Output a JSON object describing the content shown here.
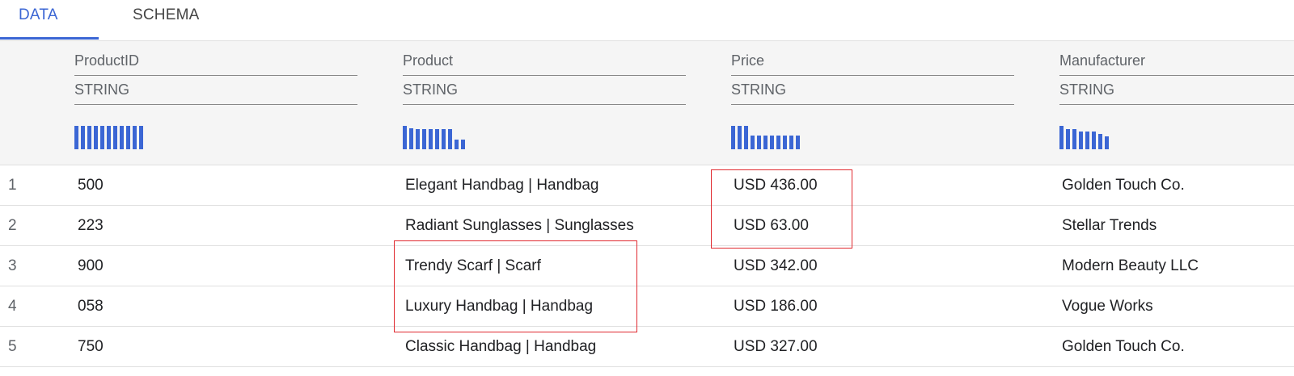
{
  "tabs": [
    {
      "label": "DATA",
      "active": true
    },
    {
      "label": "SCHEMA",
      "active": false
    }
  ],
  "accent_color": "#3b66d4",
  "highlight_color": "#e0282e",
  "columns": [
    {
      "name": "ProductID",
      "type": "STRING",
      "histogram": [
        1,
        1,
        1,
        1,
        1,
        1,
        1,
        1,
        1,
        1,
        1
      ]
    },
    {
      "name": "Product",
      "type": "STRING",
      "histogram": [
        1,
        0.9,
        0.85,
        0.85,
        0.85,
        0.85,
        0.85,
        0.85,
        0.4,
        0.4
      ]
    },
    {
      "name": "Price",
      "type": "STRING",
      "histogram": [
        1,
        1,
        1,
        0.6,
        0.6,
        0.6,
        0.6,
        0.6,
        0.6,
        0.6,
        0.6
      ]
    },
    {
      "name": "Manufacturer",
      "type": "STRING",
      "histogram": [
        1,
        0.85,
        0.85,
        0.75,
        0.75,
        0.75,
        0.65,
        0.55
      ]
    }
  ],
  "rows": [
    {
      "n": "1",
      "id": "500",
      "product": "Elegant Handbag | Handbag",
      "price": "USD 436.00",
      "mfr": "Golden Touch Co."
    },
    {
      "n": "2",
      "id": "223",
      "product": "Radiant Sunglasses | Sunglasses",
      "price": "USD 63.00",
      "mfr": "Stellar Trends"
    },
    {
      "n": "3",
      "id": "900",
      "product": "Trendy Scarf | Scarf",
      "price": "USD 342.00",
      "mfr": "Modern Beauty LLC"
    },
    {
      "n": "4",
      "id": "058",
      "product": "Luxury Handbag | Handbag",
      "price": "USD 186.00",
      "mfr": "Vogue Works"
    },
    {
      "n": "5",
      "id": "750",
      "product": "Classic Handbag | Handbag",
      "price": "USD 327.00",
      "mfr": "Golden Touch Co."
    }
  ]
}
